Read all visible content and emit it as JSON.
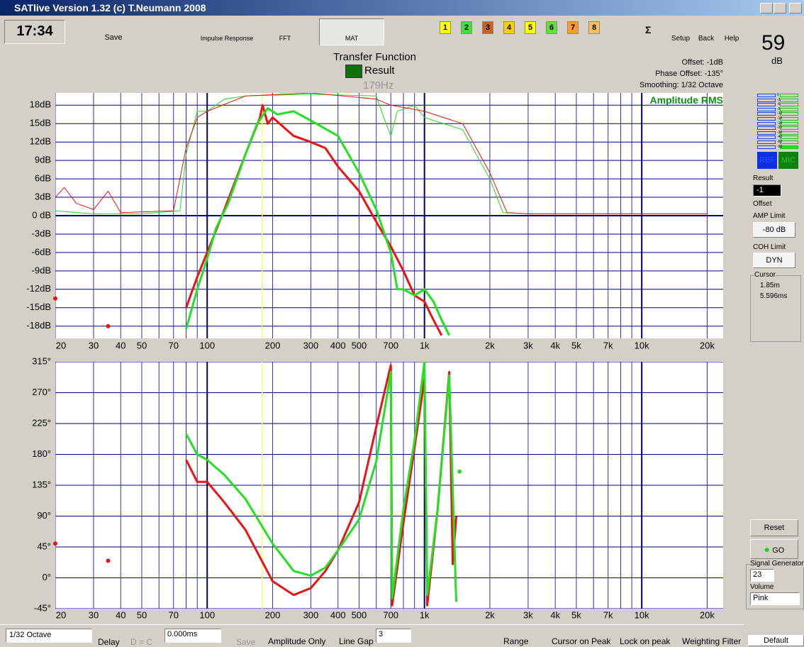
{
  "title_bar": {
    "title": "SATlive Version 1.32 (c) T.Neumann 2008"
  },
  "toolbar": {
    "time": "17:34",
    "save": "Save",
    "impulse": "Impulse Response",
    "fft": "FFT",
    "mat": "MAT",
    "channels": [
      "1",
      "2",
      "3",
      "4",
      "5",
      "6",
      "7",
      "8"
    ],
    "sigma": "Σ",
    "setup": "Setup",
    "back": "Back",
    "help": "Help"
  },
  "level": {
    "value": "59",
    "unit": "dB",
    "scale": [
      "0",
      "-3",
      "-6",
      "-9",
      "-12",
      "-15",
      "-18",
      "-21",
      "-30",
      "-40",
      "-60",
      "-90"
    ],
    "ref": "REF",
    "mic": "MIC"
  },
  "header": {
    "title": "Transfer Function",
    "legend": "Result",
    "offset": "Offset: -1dB",
    "phase_offset": "Phase Offset: -135°",
    "smoothing": "Smoothing: 1/32 Octave",
    "mode": "Amplitude RMS"
  },
  "panel": {
    "result": "Result",
    "result_value": "-1",
    "offset": "Offset",
    "amp_limit": "AMP Limit",
    "amp_value": "-80 dB",
    "coh_limit": "COH Limit",
    "coh_value": "DYN",
    "cursor": "Cursor",
    "distance": "1.85m",
    "time": "5.596ms",
    "reset": "Reset",
    "go": "GO",
    "generator": "Signal Generator",
    "gen_value": "23",
    "volume": "Volume",
    "noise": "Pink",
    "default": "Default"
  },
  "bottom_bar": {
    "smoothing": "1/32 Octave",
    "delay": "Delay",
    "dc": "D = C",
    "delay_value": "0.000ms",
    "save": "Save",
    "amp_only": "Amplitude Only",
    "line_gap": "Line Gap",
    "gap_value": "3",
    "range": "Range",
    "cursor_peak": "Cursor on Peak",
    "lock_peak": "Lock on peak",
    "weighting": "Weighting Filter"
  },
  "chart_data": [
    {
      "type": "line",
      "log_x": true,
      "grid": true,
      "xlim": [
        20,
        23700
      ],
      "ylim": [
        -20,
        20
      ],
      "cursor": {
        "value": 179,
        "label": "179Hz"
      },
      "xticks": [
        20,
        30,
        40,
        50,
        70,
        100,
        200,
        300,
        400,
        500,
        700,
        {
          "value": 1000,
          "label": "1k"
        },
        {
          "value": 2000,
          "label": "2k"
        },
        {
          "value": 3000,
          "label": "3k"
        },
        {
          "value": 4000,
          "label": "4k"
        },
        {
          "value": 5000,
          "label": "5k"
        },
        {
          "value": 7000,
          "label": "7k"
        },
        {
          "value": 10000,
          "label": "10k"
        },
        {
          "value": 20000,
          "label": "20k"
        }
      ],
      "xminor": [
        60,
        80,
        90,
        600,
        800,
        900,
        6000,
        8000,
        9000
      ],
      "yticks": [
        {
          "value": 18,
          "label": "18dB"
        },
        {
          "value": 15,
          "label": "15dB"
        },
        {
          "value": 12,
          "label": "12dB"
        },
        {
          "value": 9,
          "label": "9dB"
        },
        {
          "value": 6,
          "label": "6dB"
        },
        {
          "value": 3,
          "label": "3dB"
        },
        {
          "value": 0,
          "label": "0 dB"
        },
        {
          "value": -3,
          "label": "-3dB"
        },
        {
          "value": -6,
          "label": "-6dB"
        },
        {
          "value": -9,
          "label": "-9dB"
        },
        {
          "value": -12,
          "label": "-12dB"
        },
        {
          "value": -15,
          "label": "-15dB"
        },
        {
          "value": -18,
          "label": "-18dB"
        }
      ],
      "series": [
        {
          "style": "thin",
          "color": "#22dd22",
          "x": [
            20,
            30,
            50,
            75,
            80,
            90,
            100,
            120,
            150,
            300,
            600,
            650,
            700,
            750,
            900,
            1000,
            1500,
            2000,
            2300,
            3000,
            10000,
            20000
          ],
          "values": [
            0.8,
            0.3,
            0.3,
            0.8,
            10,
            17,
            17,
            19,
            19.5,
            19.8,
            19.5,
            16,
            13,
            17,
            18,
            16,
            14,
            6,
            0.5,
            0.3,
            0.3,
            0.3
          ]
        },
        {
          "style": "thin",
          "color": "#ee1111",
          "x": [
            20,
            22,
            25,
            30,
            35,
            40,
            70,
            80,
            90,
            100,
            150,
            300,
            600,
            700,
            1000,
            1500,
            2000,
            2400,
            3000,
            20000
          ],
          "values": [
            3,
            4.6,
            2,
            1,
            4,
            0.5,
            0.8,
            11,
            16,
            17,
            19.5,
            20,
            19,
            18,
            17,
            15,
            7,
            0.5,
            0.3,
            0.3
          ]
        },
        {
          "style": "thick",
          "color": "#ee1111",
          "x": [
            80,
            90,
            100,
            120,
            150,
            175,
            180,
            190,
            200,
            250,
            300,
            350,
            400,
            500,
            600,
            700,
            800,
            900,
            1000,
            1100,
            1200
          ],
          "values": [
            -15,
            -10,
            -6,
            1,
            10,
            16,
            18,
            15,
            16,
            13,
            12,
            11,
            8,
            4,
            -1,
            -5,
            -9,
            -13,
            -14,
            -17,
            -19.5
          ]
        },
        {
          "style": "thick",
          "color": "#22e022",
          "x": [
            80,
            90,
            100,
            110,
            125,
            150,
            170,
            190,
            210,
            250,
            300,
            400,
            500,
            600,
            700,
            750,
            800,
            900,
            1000,
            1100,
            1200,
            1300
          ],
          "values": [
            -18.5,
            -12,
            -7,
            -2,
            2,
            10,
            15,
            17.5,
            16.5,
            17,
            15.5,
            13,
            7,
            1,
            -6,
            -12,
            -12,
            -13,
            -12,
            -14,
            -17,
            -19.5
          ]
        },
        {
          "style": "dot",
          "color": "#ee1111",
          "x": [
            20,
            35
          ],
          "values": [
            -13.5,
            -18
          ]
        }
      ]
    },
    {
      "type": "line",
      "log_x": true,
      "grid": true,
      "xlim": [
        20,
        23700
      ],
      "ylim": [
        -45,
        315
      ],
      "cursor": {
        "value": 179
      },
      "xticks": [
        20,
        30,
        40,
        50,
        70,
        100,
        200,
        300,
        400,
        500,
        700,
        {
          "value": 1000,
          "label": "1k"
        },
        {
          "value": 2000,
          "label": "2k"
        },
        {
          "value": 3000,
          "label": "3k"
        },
        {
          "value": 4000,
          "label": "4k"
        },
        {
          "value": 5000,
          "label": "5k"
        },
        {
          "value": 7000,
          "label": "7k"
        },
        {
          "value": 10000,
          "label": "10k"
        },
        {
          "value": 20000,
          "label": "20k"
        }
      ],
      "xminor": [
        60,
        80,
        90,
        600,
        800,
        900,
        6000,
        8000,
        9000
      ],
      "yticks": [
        {
          "value": 315,
          "label": "315°"
        },
        {
          "value": 270,
          "label": "270°"
        },
        {
          "value": 225,
          "label": "225°"
        },
        {
          "value": 180,
          "label": "180°"
        },
        {
          "value": 135,
          "label": "135°"
        },
        {
          "value": 90,
          "label": "90°"
        },
        {
          "value": 45,
          "label": "45°"
        },
        {
          "value": 0,
          "label": "0°"
        },
        {
          "value": -45,
          "label": "-45°"
        }
      ],
      "series": [
        {
          "style": "thick",
          "color": "#ee1111",
          "x": [
            80,
            90,
            100,
            120,
            150,
            200,
            250,
            300,
            350,
            400,
            500,
            600,
            700,
            710,
            800,
            900,
            1000,
            1030,
            1150,
            1300,
            1350,
            1400
          ],
          "values": [
            172,
            140,
            140,
            110,
            70,
            -5,
            -25,
            -15,
            10,
            40,
            110,
            220,
            310,
            -40,
            80,
            190,
            290,
            -40,
            100,
            300,
            20,
            90
          ]
        },
        {
          "style": "thick",
          "color": "#22e022",
          "x": [
            80,
            90,
            100,
            120,
            150,
            200,
            250,
            300,
            350,
            400,
            500,
            600,
            700,
            710,
            800,
            900,
            1000,
            1030,
            1150,
            1300,
            1400
          ],
          "values": [
            210,
            180,
            172,
            150,
            115,
            50,
            10,
            3,
            15,
            40,
            85,
            170,
            300,
            -30,
            100,
            200,
            315,
            -25,
            100,
            295,
            -35
          ]
        },
        {
          "style": "dot",
          "color": "#ee1111",
          "x": [
            20,
            35
          ],
          "values": [
            50,
            25
          ]
        },
        {
          "style": "dot",
          "color": "#22e022",
          "x": [
            1450
          ],
          "values": [
            155
          ]
        }
      ]
    }
  ]
}
